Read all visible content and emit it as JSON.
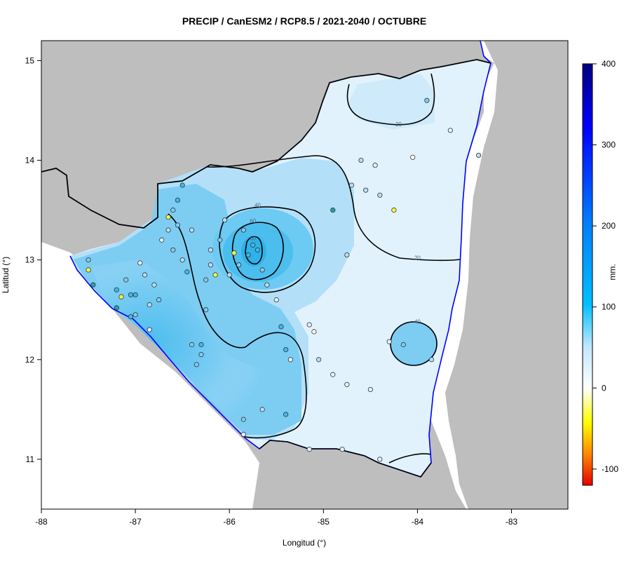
{
  "title": "PRECIP / CanESM2 / RCP8.5 / 2021-2040 / OCTUBRE",
  "xlabel": "Longitud (°)",
  "ylabel": "Latitud (°)",
  "colorbar": {
    "unit": "mm.",
    "ticks": [
      400,
      300,
      200,
      100,
      0,
      -100
    ],
    "range": [
      -120,
      400
    ],
    "colors": [
      "#e60000",
      "#ff8000",
      "#ffff00",
      "#ffffff",
      "#bfe6ff",
      "#00bfff",
      "#0080ff",
      "#0000ff",
      "#000080"
    ]
  },
  "map_colors": {
    "background_land": "#bebebe",
    "sea_and_lakes": "#ffffff",
    "coast_line": "#0000ff",
    "border_line": "#000000",
    "field_light": "#e6f4fd",
    "field_mid": "#a8dcf7",
    "field_strong": "#5bc3f1",
    "field_core": "#38b4ea"
  },
  "x_axis": {
    "ticks": [
      "-88",
      "-87",
      "-86",
      "-85",
      "-84",
      "-83"
    ],
    "range": [
      -88,
      -82.4
    ]
  },
  "y_axis": {
    "ticks": [
      "15",
      "14",
      "13",
      "12",
      "11"
    ],
    "range": [
      10.5,
      15.2
    ]
  },
  "contour_labels": [
    {
      "text": "20",
      "lon": -84.2,
      "lat": 14.34
    },
    {
      "text": "20",
      "lon": -84.0,
      "lat": 13.0
    },
    {
      "text": "40",
      "lon": -85.7,
      "lat": 13.53
    },
    {
      "text": "60",
      "lon": -85.75,
      "lat": 13.37
    },
    {
      "text": "80",
      "lon": -85.75,
      "lat": 13.2
    },
    {
      "text": "40",
      "lon": -84.0,
      "lat": 12.36
    }
  ],
  "chart_data": {
    "type": "map-contour",
    "variable": "PRECIP",
    "model": "CanESM2",
    "scenario": "RCP8.5",
    "period": "2021-2040",
    "month": "OCTUBRE",
    "contour_levels": [
      20,
      40,
      60,
      80
    ],
    "stations": [
      {
        "lon": -87.5,
        "lat": 13.0,
        "v": 55
      },
      {
        "lon": -87.5,
        "lat": 12.9,
        "v": -40
      },
      {
        "lon": -87.45,
        "lat": 12.75,
        "v": 160
      },
      {
        "lon": -87.2,
        "lat": 12.7,
        "v": 90
      },
      {
        "lon": -87.2,
        "lat": 12.52,
        "v": 140
      },
      {
        "lon": -87.15,
        "lat": 12.63,
        "v": -60
      },
      {
        "lon": -87.1,
        "lat": 12.8,
        "v": 70
      },
      {
        "lon": -87.05,
        "lat": 12.65,
        "v": 80
      },
      {
        "lon": -87.05,
        "lat": 12.43,
        "v": 110
      },
      {
        "lon": -87.0,
        "lat": 12.65,
        "v": 90
      },
      {
        "lon": -87.0,
        "lat": 12.45,
        "v": 50
      },
      {
        "lon": -86.95,
        "lat": 12.97,
        "v": 10
      },
      {
        "lon": -86.9,
        "lat": 12.85,
        "v": 30
      },
      {
        "lon": -86.85,
        "lat": 12.55,
        "v": 40
      },
      {
        "lon": -86.85,
        "lat": 12.3,
        "v": 20
      },
      {
        "lon": -86.8,
        "lat": 12.75,
        "v": 30
      },
      {
        "lon": -86.75,
        "lat": 12.6,
        "v": 60
      },
      {
        "lon": -86.72,
        "lat": 13.2,
        "v": 10
      },
      {
        "lon": -86.65,
        "lat": 13.43,
        "v": -50
      },
      {
        "lon": -86.65,
        "lat": 13.3,
        "v": 40
      },
      {
        "lon": -86.6,
        "lat": 13.5,
        "v": 60
      },
      {
        "lon": -86.6,
        "lat": 13.1,
        "v": 70
      },
      {
        "lon": -86.55,
        "lat": 13.35,
        "v": 50
      },
      {
        "lon": -86.55,
        "lat": 13.6,
        "v": 80
      },
      {
        "lon": -86.5,
        "lat": 13.75,
        "v": 110
      },
      {
        "lon": -86.5,
        "lat": 13.0,
        "v": 30
      },
      {
        "lon": -86.45,
        "lat": 12.88,
        "v": 100
      },
      {
        "lon": -86.4,
        "lat": 13.3,
        "v": 40
      },
      {
        "lon": -86.4,
        "lat": 12.15,
        "v": 60
      },
      {
        "lon": -86.35,
        "lat": 11.95,
        "v": 70
      },
      {
        "lon": -86.3,
        "lat": 12.15,
        "v": 80
      },
      {
        "lon": -86.3,
        "lat": 12.05,
        "v": 60
      },
      {
        "lon": -86.25,
        "lat": 12.5,
        "v": 60
      },
      {
        "lon": -86.25,
        "lat": 12.8,
        "v": 50
      },
      {
        "lon": -86.2,
        "lat": 12.95,
        "v": 40
      },
      {
        "lon": -86.2,
        "lat": 13.1,
        "v": 40
      },
      {
        "lon": -86.15,
        "lat": 12.85,
        "v": -60
      },
      {
        "lon": -86.1,
        "lat": 13.2,
        "v": 70
      },
      {
        "lon": -86.05,
        "lat": 13.4,
        "v": 40
      },
      {
        "lon": -86.0,
        "lat": 12.85,
        "v": 40
      },
      {
        "lon": -85.95,
        "lat": 13.07,
        "v": -80
      },
      {
        "lon": -85.9,
        "lat": 12.95,
        "v": 50
      },
      {
        "lon": -85.85,
        "lat": 13.3,
        "v": 70
      },
      {
        "lon": -85.8,
        "lat": 13.05,
        "v": 90
      },
      {
        "lon": -85.75,
        "lat": 13.15,
        "v": 100
      },
      {
        "lon": -85.7,
        "lat": 13.1,
        "v": 80
      },
      {
        "lon": -85.65,
        "lat": 12.9,
        "v": 60
      },
      {
        "lon": -85.6,
        "lat": 12.75,
        "v": 30
      },
      {
        "lon": -85.5,
        "lat": 12.6,
        "v": 10
      },
      {
        "lon": -85.45,
        "lat": 12.33,
        "v": 110
      },
      {
        "lon": -85.4,
        "lat": 12.1,
        "v": 80
      },
      {
        "lon": -85.35,
        "lat": 12.0,
        "v": 20
      },
      {
        "lon": -85.15,
        "lat": 12.35,
        "v": 20
      },
      {
        "lon": -85.1,
        "lat": 12.28,
        "v": -10
      },
      {
        "lon": -85.05,
        "lat": 12.0,
        "v": 30
      },
      {
        "lon": -84.9,
        "lat": 13.5,
        "v": 120
      },
      {
        "lon": -84.75,
        "lat": 13.05,
        "v": 40
      },
      {
        "lon": -84.7,
        "lat": 13.75,
        "v": 30
      },
      {
        "lon": -84.6,
        "lat": 14.0,
        "v": 30
      },
      {
        "lon": -84.55,
        "lat": 13.7,
        "v": 40
      },
      {
        "lon": -84.45,
        "lat": 13.95,
        "v": 20
      },
      {
        "lon": -84.4,
        "lat": 13.65,
        "v": 30
      },
      {
        "lon": -84.25,
        "lat": 13.5,
        "v": -60
      },
      {
        "lon": -84.05,
        "lat": 14.03,
        "v": -30
      },
      {
        "lon": -83.9,
        "lat": 14.6,
        "v": 60
      },
      {
        "lon": -83.65,
        "lat": 14.3,
        "v": 20
      },
      {
        "lon": -83.35,
        "lat": 14.05,
        "v": 30
      },
      {
        "lon": -84.3,
        "lat": 12.18,
        "v": 20
      },
      {
        "lon": -84.15,
        "lat": 12.15,
        "v": 60
      },
      {
        "lon": -83.85,
        "lat": 12.0,
        "v": 40
      },
      {
        "lon": -84.9,
        "lat": 11.85,
        "v": 20
      },
      {
        "lon": -84.75,
        "lat": 11.75,
        "v": 10
      },
      {
        "lon": -84.5,
        "lat": 11.7,
        "v": 10
      },
      {
        "lon": -85.4,
        "lat": 11.45,
        "v": 80
      },
      {
        "lon": -85.15,
        "lat": 11.1,
        "v": 20
      },
      {
        "lon": -84.8,
        "lat": 11.1,
        "v": 20
      },
      {
        "lon": -84.4,
        "lat": 11.0,
        "v": 20
      },
      {
        "lon": -85.65,
        "lat": 11.5,
        "v": 40
      },
      {
        "lon": -85.85,
        "lat": 11.4,
        "v": 60
      },
      {
        "lon": -85.85,
        "lat": 11.25,
        "v": 10
      }
    ]
  }
}
